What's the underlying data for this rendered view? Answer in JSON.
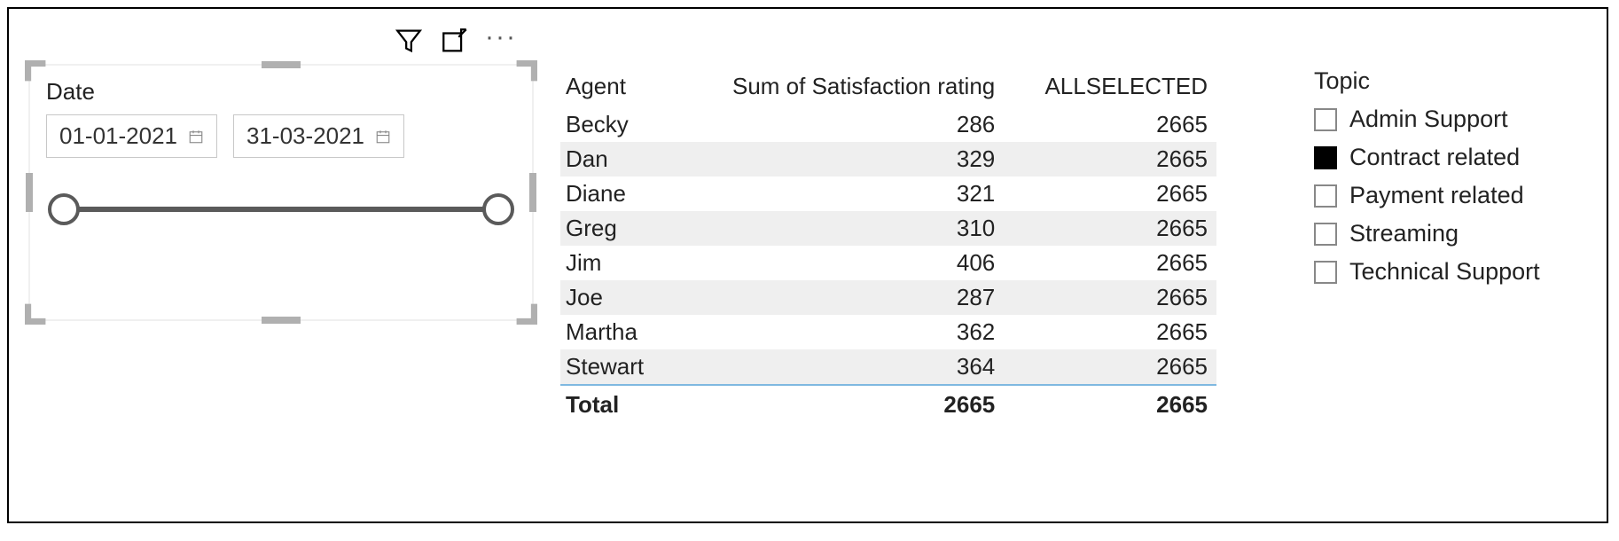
{
  "date_slicer": {
    "title": "Date",
    "start": "01-01-2021",
    "end": "31-03-2021"
  },
  "agent_table": {
    "columns": [
      "Agent",
      "Sum of Satisfaction rating",
      "ALLSELECTED"
    ],
    "rows": [
      {
        "agent": "Becky",
        "sum": "286",
        "all": "2665"
      },
      {
        "agent": "Dan",
        "sum": "329",
        "all": "2665"
      },
      {
        "agent": "Diane",
        "sum": "321",
        "all": "2665"
      },
      {
        "agent": "Greg",
        "sum": "310",
        "all": "2665"
      },
      {
        "agent": "Jim",
        "sum": "406",
        "all": "2665"
      },
      {
        "agent": "Joe",
        "sum": "287",
        "all": "2665"
      },
      {
        "agent": "Martha",
        "sum": "362",
        "all": "2665"
      },
      {
        "agent": "Stewart",
        "sum": "364",
        "all": "2665"
      }
    ],
    "total": {
      "label": "Total",
      "sum": "2665",
      "all": "2665"
    },
    "header_rule_color": "#7fb8e0",
    "row_alt_bg": "#efefef"
  },
  "topic_slicer": {
    "title": "Topic",
    "items": [
      {
        "label": "Admin Support",
        "checked": false
      },
      {
        "label": "Contract related",
        "checked": true
      },
      {
        "label": "Payment related",
        "checked": false
      },
      {
        "label": "Streaming",
        "checked": false
      },
      {
        "label": "Technical Support",
        "checked": false
      }
    ]
  }
}
